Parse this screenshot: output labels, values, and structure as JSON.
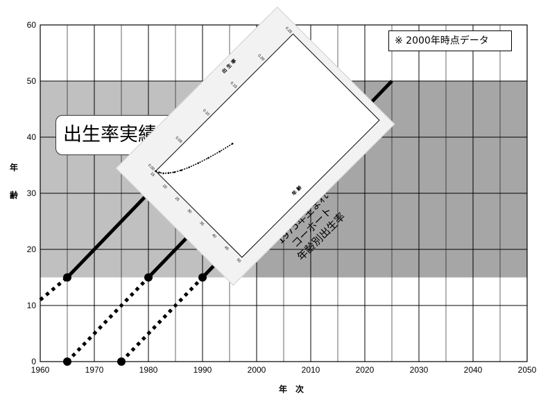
{
  "chart_data": {
    "type": "line",
    "title": "",
    "xlabel": "年　次",
    "ylabel": [
      "年",
      "齢"
    ],
    "xlim": [
      1960,
      2050
    ],
    "ylim": [
      0,
      60
    ],
    "x_ticks": [
      1960,
      1970,
      1980,
      1990,
      2000,
      2010,
      2020,
      2030,
      2040,
      2050
    ],
    "y_ticks": [
      0,
      10,
      20,
      30,
      40,
      50,
      60
    ],
    "grid": true,
    "shaded_regions": [
      {
        "x": [
          1960,
          2050
        ],
        "y": [
          15,
          50
        ],
        "color": "#c0c0c0"
      },
      {
        "x": [
          2000,
          2050
        ],
        "y": [
          15,
          50
        ],
        "color": "#a6a6a6"
      }
    ],
    "cohort_lines": [
      {
        "birth_year": 1950,
        "dotted": [
          [
            1960,
            11
          ],
          [
            1965,
            15
          ]
        ],
        "solid": [
          [
            1965,
            15
          ],
          [
            2000,
            50
          ]
        ]
      },
      {
        "birth_year": 1965,
        "dotted": [
          [
            1965,
            0
          ],
          [
            1980,
            15
          ]
        ],
        "solid": [
          [
            1980,
            15
          ],
          [
            2015,
            50
          ]
        ]
      },
      {
        "birth_year": 1975,
        "dotted": [
          [
            1975,
            0
          ],
          [
            1990,
            15
          ]
        ],
        "solid": [
          [
            1990,
            15
          ],
          [
            2025,
            50
          ]
        ]
      }
    ],
    "markers": [
      [
        1965,
        15
      ],
      [
        1980,
        15
      ],
      [
        1990,
        15
      ],
      [
        1965,
        0
      ],
      [
        1975,
        0
      ]
    ],
    "annotations": {
      "note": "※ 2000年時点データ",
      "actual_label": "出生率実績デ",
      "cohort_label": [
        "1975年生まれ",
        "コーホート",
        "年齢別出生率"
      ]
    },
    "inset": {
      "type": "line",
      "ylabel": "出 生 率",
      "xlabel": "年 齢",
      "x_ticks": [
        15,
        20,
        25,
        30,
        35,
        40,
        45,
        50
      ],
      "y_ticks": [
        "0.00",
        "0.05",
        "0.10",
        "0.15",
        "0.20",
        "0.25"
      ],
      "x": [
        15,
        16,
        17,
        18,
        19,
        20,
        21,
        22,
        23,
        24,
        25
      ],
      "values": [
        0.0,
        0.002,
        0.005,
        0.01,
        0.016,
        0.024,
        0.034,
        0.046,
        0.06,
        0.076,
        0.095
      ]
    },
    "colors": {
      "band": "#c0c0c0",
      "band_dark": "#a6a6a6",
      "line": "#000000"
    }
  }
}
